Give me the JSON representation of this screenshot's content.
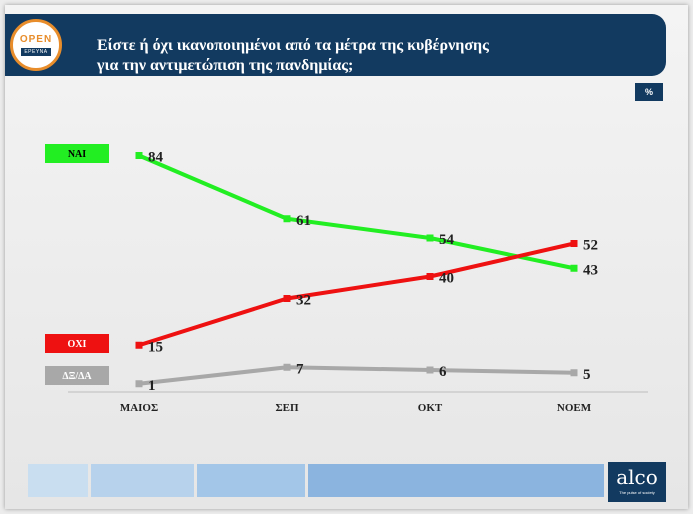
{
  "header": {
    "title_line1": "Είστε ή όχι ικανοποιημένοι από τα μέτρα της κυβέρνησης",
    "title_line2": "για την αντιμετώπιση της πανδημίας;",
    "logo_top": "OPEN",
    "logo_bottom": "ΕΡΕΥΝΑ",
    "unit": "%"
  },
  "footer": {
    "brand": "alco",
    "tagline": "The pulse of society"
  },
  "colors": {
    "header_bg": "#123a60",
    "accent_orange": "#e88d2b",
    "series_yes": "#22ee22",
    "series_no": "#ee1111",
    "series_dkda": "#a8a8a8"
  },
  "chart_data": {
    "type": "line",
    "title": "Είστε ή όχι ικανοποιημένοι από τα μέτρα της κυβέρνησης για την αντιμετώπιση της πανδημίας;",
    "categories": [
      "ΜΑΙΟΣ",
      "ΣΕΠ",
      "ΟΚΤ",
      "ΝΟΕΜ"
    ],
    "series": [
      {
        "name": "ΝΑΙ",
        "color": "#22ee22",
        "values": [
          84,
          61,
          54,
          43
        ]
      },
      {
        "name": "ΟΧΙ",
        "color": "#ee1111",
        "values": [
          15,
          32,
          40,
          52
        ]
      },
      {
        "name": "ΔΞ/ΔΑ",
        "color": "#a8a8a8",
        "values": [
          1,
          7,
          6,
          5
        ]
      }
    ],
    "unit": "%",
    "legend": "left",
    "grid": false
  }
}
